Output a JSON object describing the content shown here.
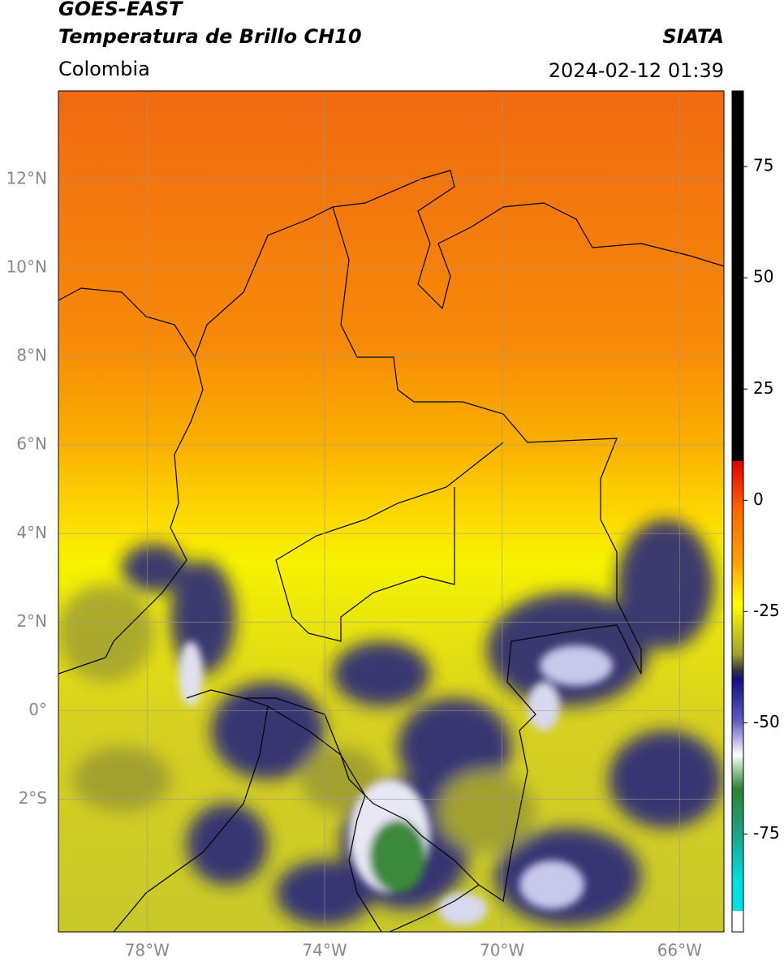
{
  "header": {
    "title": "GOES-EAST",
    "subtitle": "Temperatura de Brillo CH10",
    "source": "SIATA",
    "region": "Colombia",
    "datetime": "2024-02-12 01:39"
  },
  "map": {
    "xlim": [
      -80,
      -65
    ],
    "ylim": [
      -5,
      14
    ],
    "xticks": [
      {
        "value": -78,
        "label": "78°W"
      },
      {
        "value": -74,
        "label": "74°W"
      },
      {
        "value": -70,
        "label": "70°W"
      },
      {
        "value": -66,
        "label": "66°W"
      }
    ],
    "yticks": [
      {
        "value": 12,
        "label": "12°N"
      },
      {
        "value": 10,
        "label": "10°N"
      },
      {
        "value": 8,
        "label": "8°N"
      },
      {
        "value": 6,
        "label": "6°N"
      },
      {
        "value": 4,
        "label": "4°N"
      },
      {
        "value": 2,
        "label": "2°N"
      },
      {
        "value": 0,
        "label": "0°"
      },
      {
        "value": -2,
        "label": "2°S"
      }
    ],
    "grid": true
  },
  "colorbar": {
    "lim": [
      -97,
      92
    ],
    "ticks": [
      75,
      50,
      25,
      0,
      -25,
      -50,
      -75
    ]
  }
}
